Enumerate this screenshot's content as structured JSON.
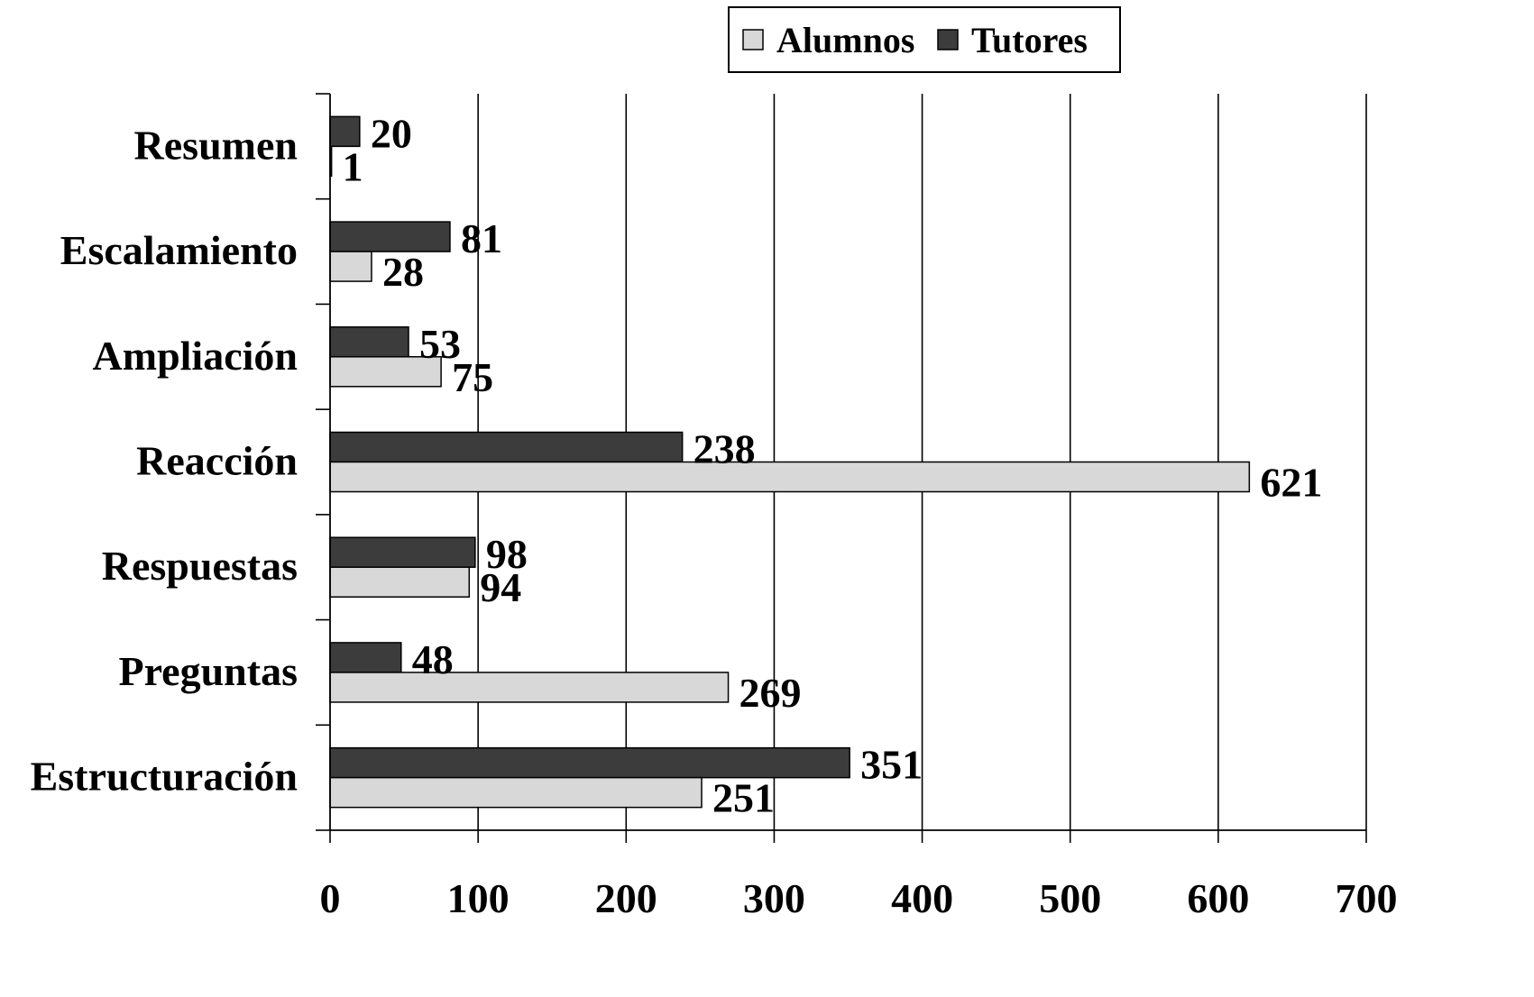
{
  "chart_data": {
    "type": "bar",
    "orientation": "horizontal",
    "title": "",
    "xlabel": "",
    "ylabel": "",
    "categories": [
      "Resumen",
      "Escalamiento",
      "Ampliación",
      "Reacción",
      "Respuestas",
      "Preguntas",
      "Estructuración"
    ],
    "series": [
      {
        "name": "Tutores",
        "values": [
          20,
          81,
          53,
          238,
          98,
          48,
          351
        ],
        "color": "#3c3c3c"
      },
      {
        "name": "Alumnos",
        "values": [
          1,
          28,
          75,
          621,
          94,
          269,
          251
        ],
        "color": "#d8d8d8"
      }
    ],
    "xlim": [
      0,
      700
    ],
    "xticks": [
      0,
      100,
      200,
      300,
      400,
      500,
      600,
      700
    ],
    "xtick_labels": [
      "0",
      "100",
      "200",
      "300",
      "400",
      "500",
      "600",
      "700"
    ],
    "grid": "vertical",
    "data_labels": true,
    "legend": {
      "position": "top",
      "entries": [
        {
          "label": "Alumnos",
          "color": "#d8d8d8"
        },
        {
          "label": "Tutores",
          "color": "#3c3c3c"
        }
      ]
    }
  }
}
